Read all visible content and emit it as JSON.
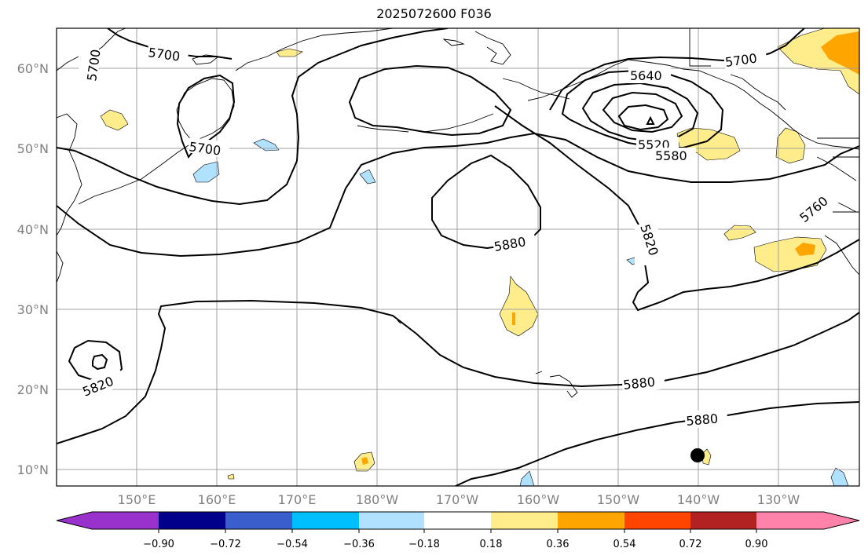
{
  "title": "2025072600 F036",
  "map": {
    "x_ticks": [
      "150°E",
      "160°E",
      "170°E",
      "180°W",
      "170°W",
      "160°W",
      "150°W",
      "140°W",
      "130°W"
    ],
    "y_ticks": [
      "10°N",
      "20°N",
      "30°N",
      "40°N",
      "50°N",
      "60°N"
    ],
    "contour_labels": [
      {
        "text": "5700",
        "label": "5700"
      },
      {
        "text": "5700",
        "label": "5700"
      },
      {
        "text": "5700",
        "label": "5700"
      },
      {
        "text": "5700",
        "label": "5700"
      },
      {
        "text": "5640",
        "label": "5640"
      },
      {
        "text": "5520",
        "label": "5520"
      },
      {
        "text": "5580",
        "label": "5580"
      },
      {
        "text": "5760",
        "label": "5760"
      },
      {
        "text": "5820",
        "label": "5820"
      },
      {
        "text": "5880",
        "label": "5880"
      },
      {
        "text": "5880",
        "label": "5880"
      },
      {
        "text": "5880",
        "label": "5880"
      },
      {
        "text": "5820",
        "label": "5820"
      }
    ],
    "grid": true
  },
  "colorbar": {
    "ticks": [
      "−0.90",
      "−0.72",
      "−0.54",
      "−0.36",
      "−0.18",
      "0.18",
      "0.36",
      "0.54",
      "0.72",
      "0.90"
    ],
    "colors": [
      "#9932cc",
      "#00008b",
      "#3a5fcd",
      "#00bfff",
      "#b0e2ff",
      "#ffffff",
      "#ffec8b",
      "#ffa500",
      "#ff4500",
      "#b22222",
      "#ff82ab"
    ]
  }
}
